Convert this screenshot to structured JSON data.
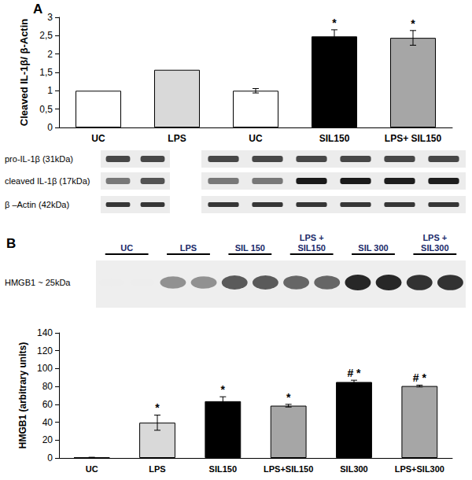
{
  "chart_data": [
    {
      "panel": "A",
      "type": "bar",
      "ylabel": "Cleaved IL-1β/ β-Actin",
      "categories": [
        "UC",
        "LPS",
        "UC",
        "SIL150",
        "LPS+ SIL150"
      ],
      "values": [
        1,
        1.57,
        1,
        2.48,
        2.44
      ],
      "errors": [
        null,
        null,
        0.06,
        0.18,
        0.2
      ],
      "annotations": [
        null,
        null,
        null,
        "*",
        "*"
      ],
      "colors": [
        "#ffffff",
        "#d9d9d9",
        "#ffffff",
        "#000000",
        "#a6a6a6"
      ],
      "ylim": [
        0,
        3
      ],
      "yticks": [
        0,
        {
          "value": 0.5,
          "label": "0,5"
        },
        1,
        {
          "value": 1.5,
          "label": "1,5"
        },
        2,
        {
          "value": 2.5,
          "label": "2,5"
        },
        3
      ],
      "grid": false
    },
    {
      "panel": "B",
      "type": "bar",
      "ylabel": "HMGB1 (arbitrary units)",
      "categories": [
        "UC",
        "LPS",
        "SIL150",
        "LPS+SIL150",
        "SIL300",
        "LPS+SIL300"
      ],
      "values": [
        0.5,
        39.5,
        63.5,
        58.5,
        85,
        80.5
      ],
      "errors": [
        0.3,
        8.5,
        5,
        1.5,
        2,
        1
      ],
      "annotations": [
        null,
        "*",
        "*",
        "*",
        "# *",
        "# *"
      ],
      "colors": [
        "#ffffff",
        "#d9d9d9",
        "#000000",
        "#a6a6a6",
        "#000000",
        "#a6a6a6"
      ],
      "ylim": [
        0,
        140
      ],
      "yticks": [
        0,
        20,
        40,
        60,
        80,
        100,
        120,
        140
      ],
      "grid": false
    }
  ],
  "blots": [
    {
      "rows": [
        "pro-IL-1β (31kDa)",
        "cleaved IL-1β (17kDa)",
        "β –Actin (42kDa)"
      ]
    },
    {
      "rows": [
        "HMGB1 ~ 25kDa"
      ],
      "lane_labels": [
        "UC",
        "LPS",
        "SIL 150",
        "LPS +\nSIL150",
        "SIL 300",
        "LPS +\nSIL300"
      ]
    }
  ]
}
